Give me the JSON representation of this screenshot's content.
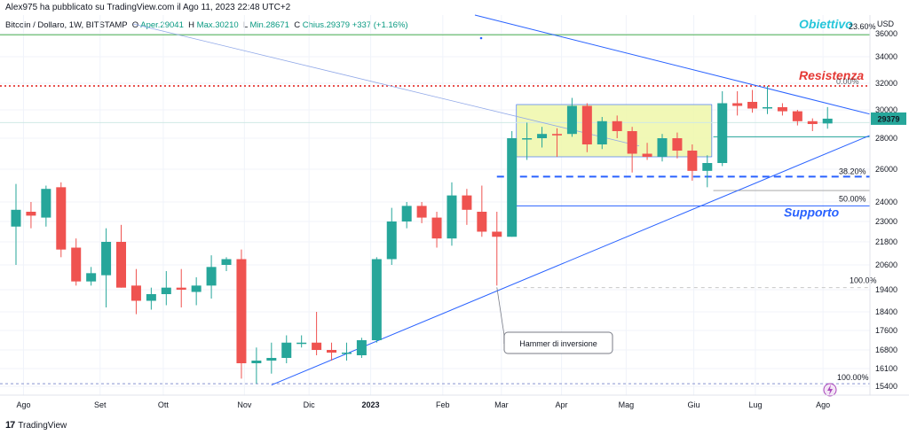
{
  "publisher": "Alex975 ha pubblicato su TradingView.com il Ago 11, 2023 22:48 UTC+2",
  "header": {
    "symbol": "Bitcoin / Dollaro, 1W, BITSTAMP",
    "open_label": "O",
    "open": "Aper.29041",
    "high_label": "H",
    "high": "Max.30210",
    "low_label": "L",
    "low": "Min.28671",
    "close_label": "C",
    "close": "Chius.29379",
    "change": "+337 (+1.16%)"
  },
  "footer": {
    "logo": "17",
    "brand": "TradingView"
  },
  "colors": {
    "up": "#26a69a",
    "down": "#ef5350",
    "trend": "#2962ff",
    "resist": "#e53935",
    "target": "#26c6da",
    "box": "#eef7a9"
  },
  "chart_data": {
    "type": "candlestick",
    "currency": "USD",
    "y_ticks": [
      15400,
      16100,
      16800,
      17600,
      18400,
      19400,
      20600,
      21800,
      23000,
      24000,
      26000,
      28000,
      30000,
      32000,
      34000,
      36000
    ],
    "x_labels": [
      {
        "label": "Ago",
        "i": 0.5
      },
      {
        "label": "Set",
        "i": 5.6
      },
      {
        "label": "Ott",
        "i": 9.8
      },
      {
        "label": "Nov",
        "i": 15.2
      },
      {
        "label": "Dic",
        "i": 19.5
      },
      {
        "label": "2023",
        "i": 23.6
      },
      {
        "label": "Feb",
        "i": 28.4
      },
      {
        "label": "Mar",
        "i": 32.3
      },
      {
        "label": "Apr",
        "i": 36.3
      },
      {
        "label": "Mag",
        "i": 40.6
      },
      {
        "label": "Giu",
        "i": 45.1
      },
      {
        "label": "Lug",
        "i": 49.2
      },
      {
        "label": "Ago",
        "i": 53.7
      }
    ],
    "candles": [
      {
        "o": 22700,
        "h": 25100,
        "l": 20600,
        "c": 23600
      },
      {
        "o": 23500,
        "h": 24000,
        "l": 22600,
        "c": 23300
      },
      {
        "o": 23200,
        "h": 25000,
        "l": 22700,
        "c": 24800
      },
      {
        "o": 24900,
        "h": 25200,
        "l": 21000,
        "c": 21400
      },
      {
        "o": 21500,
        "h": 22000,
        "l": 19600,
        "c": 19800
      },
      {
        "o": 19800,
        "h": 20500,
        "l": 19600,
        "c": 20200
      },
      {
        "o": 20100,
        "h": 22600,
        "l": 18600,
        "c": 21800
      },
      {
        "o": 21800,
        "h": 22800,
        "l": 19500,
        "c": 19500
      },
      {
        "o": 19600,
        "h": 20400,
        "l": 18300,
        "c": 18900
      },
      {
        "o": 18900,
        "h": 19500,
        "l": 18500,
        "c": 19200
      },
      {
        "o": 19200,
        "h": 20300,
        "l": 18700,
        "c": 19500
      },
      {
        "o": 19500,
        "h": 20400,
        "l": 18600,
        "c": 19400
      },
      {
        "o": 19300,
        "h": 20000,
        "l": 18700,
        "c": 19600
      },
      {
        "o": 19600,
        "h": 21100,
        "l": 19000,
        "c": 20500
      },
      {
        "o": 20600,
        "h": 21000,
        "l": 20300,
        "c": 20900
      },
      {
        "o": 20900,
        "h": 21400,
        "l": 15700,
        "c": 16300
      },
      {
        "o": 16300,
        "h": 16900,
        "l": 15500,
        "c": 16400
      },
      {
        "o": 16400,
        "h": 17100,
        "l": 15900,
        "c": 16500
      },
      {
        "o": 16500,
        "h": 17400,
        "l": 16300,
        "c": 17100
      },
      {
        "o": 17100,
        "h": 17400,
        "l": 16900,
        "c": 17100
      },
      {
        "o": 17100,
        "h": 18400,
        "l": 16600,
        "c": 16800
      },
      {
        "o": 16800,
        "h": 17100,
        "l": 16400,
        "c": 16700
      },
      {
        "o": 16700,
        "h": 17100,
        "l": 16400,
        "c": 16700
      },
      {
        "o": 16600,
        "h": 17300,
        "l": 16500,
        "c": 17200
      },
      {
        "o": 17200,
        "h": 21000,
        "l": 17100,
        "c": 20900
      },
      {
        "o": 20900,
        "h": 23700,
        "l": 20600,
        "c": 23000
      },
      {
        "o": 23000,
        "h": 24000,
        "l": 22600,
        "c": 23800
      },
      {
        "o": 23800,
        "h": 24000,
        "l": 22900,
        "c": 23200
      },
      {
        "o": 23200,
        "h": 23500,
        "l": 21500,
        "c": 22000
      },
      {
        "o": 22000,
        "h": 25200,
        "l": 21600,
        "c": 24400
      },
      {
        "o": 24400,
        "h": 24800,
        "l": 22800,
        "c": 23600
      },
      {
        "o": 23500,
        "h": 25000,
        "l": 22100,
        "c": 22400
      },
      {
        "o": 22400,
        "h": 23500,
        "l": 19600,
        "c": 22100
      },
      {
        "o": 22100,
        "h": 28500,
        "l": 22100,
        "c": 28000
      },
      {
        "o": 28000,
        "h": 29100,
        "l": 26600,
        "c": 28000
      },
      {
        "o": 28000,
        "h": 28800,
        "l": 27400,
        "c": 28300
      },
      {
        "o": 28300,
        "h": 28700,
        "l": 26800,
        "c": 28200
      },
      {
        "o": 28300,
        "h": 30900,
        "l": 28100,
        "c": 30300
      },
      {
        "o": 30300,
        "h": 30500,
        "l": 27100,
        "c": 27600
      },
      {
        "o": 27600,
        "h": 29500,
        "l": 27300,
        "c": 29200
      },
      {
        "o": 29200,
        "h": 29600,
        "l": 28000,
        "c": 28500
      },
      {
        "o": 28500,
        "h": 28800,
        "l": 25800,
        "c": 27000
      },
      {
        "o": 27000,
        "h": 27700,
        "l": 26600,
        "c": 26800
      },
      {
        "o": 26800,
        "h": 28300,
        "l": 26500,
        "c": 28000
      },
      {
        "o": 28000,
        "h": 28400,
        "l": 26700,
        "c": 27200
      },
      {
        "o": 27200,
        "h": 27600,
        "l": 25300,
        "c": 25900
      },
      {
        "o": 25900,
        "h": 26900,
        "l": 24900,
        "c": 26400
      },
      {
        "o": 26400,
        "h": 31400,
        "l": 26200,
        "c": 30500
      },
      {
        "o": 30500,
        "h": 31400,
        "l": 29600,
        "c": 30300
      },
      {
        "o": 30600,
        "h": 31500,
        "l": 29800,
        "c": 30100
      },
      {
        "o": 30200,
        "h": 31800,
        "l": 29700,
        "c": 30200
      },
      {
        "o": 30200,
        "h": 30500,
        "l": 29600,
        "c": 29900
      },
      {
        "o": 29900,
        "h": 30000,
        "l": 28900,
        "c": 29200
      },
      {
        "o": 29200,
        "h": 29400,
        "l": 28500,
        "c": 29000
      },
      {
        "o": 29041,
        "h": 30210,
        "l": 28671,
        "c": 29379
      }
    ],
    "current_price": "29379",
    "annotations": {
      "objective": "Obiettivo",
      "resistance": "Resistenza",
      "support": "Supporto",
      "hammer": "Hammer di inversione"
    },
    "fib_labels": {
      "f0": "0.00%",
      "f236": "23.60%",
      "f382": "38.20%",
      "f50": "50.00%",
      "f100": "100.0%",
      "f100b": "100.00%",
      "f236_top": "23.60%"
    }
  }
}
